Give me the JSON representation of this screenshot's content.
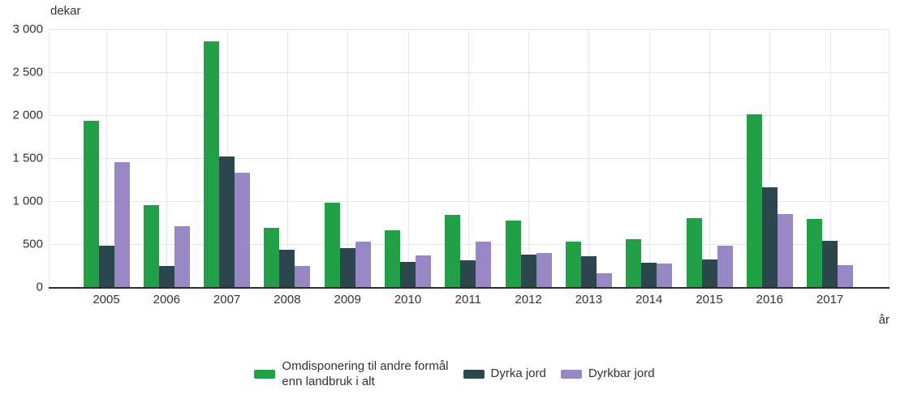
{
  "chart_data": {
    "type": "bar",
    "title": "",
    "ylabel": "dekar",
    "xlabel": "år",
    "ylim": [
      0,
      3000
    ],
    "grid": true,
    "legend_position": "bottom",
    "categories": [
      "2005",
      "2006",
      "2007",
      "2008",
      "2009",
      "2010",
      "2011",
      "2012",
      "2013",
      "2014",
      "2015",
      "2016",
      "2017"
    ],
    "yticks": [
      {
        "value": 0,
        "label": "0"
      },
      {
        "value": 500,
        "label": "500"
      },
      {
        "value": 1000,
        "label": "1 000"
      },
      {
        "value": 1500,
        "label": "1 500"
      },
      {
        "value": 2000,
        "label": "2 000"
      },
      {
        "value": 2500,
        "label": "2 500"
      },
      {
        "value": 3000,
        "label": "3 000"
      }
    ],
    "series": [
      {
        "name": "Omdisponering til andre formål\nenn landbruk i alt",
        "color": "#21a047",
        "values": [
          1935,
          955,
          2855,
          685,
          980,
          665,
          840,
          775,
          525,
          560,
          805,
          2005,
          790
        ]
      },
      {
        "name": "Dyrka jord",
        "color": "#2b464d",
        "values": [
          485,
          250,
          1520,
          435,
          450,
          295,
          310,
          380,
          360,
          285,
          325,
          1160,
          535
        ]
      },
      {
        "name": "Dyrkbar jord",
        "color": "#9787c5",
        "values": [
          1450,
          705,
          1335,
          250,
          530,
          370,
          530,
          395,
          165,
          275,
          480,
          845,
          255
        ]
      }
    ],
    "colors": {
      "grid": "#e7e7e7",
      "axis": "#2d2d2d",
      "text": "#333333",
      "background": "#ffffff"
    }
  }
}
